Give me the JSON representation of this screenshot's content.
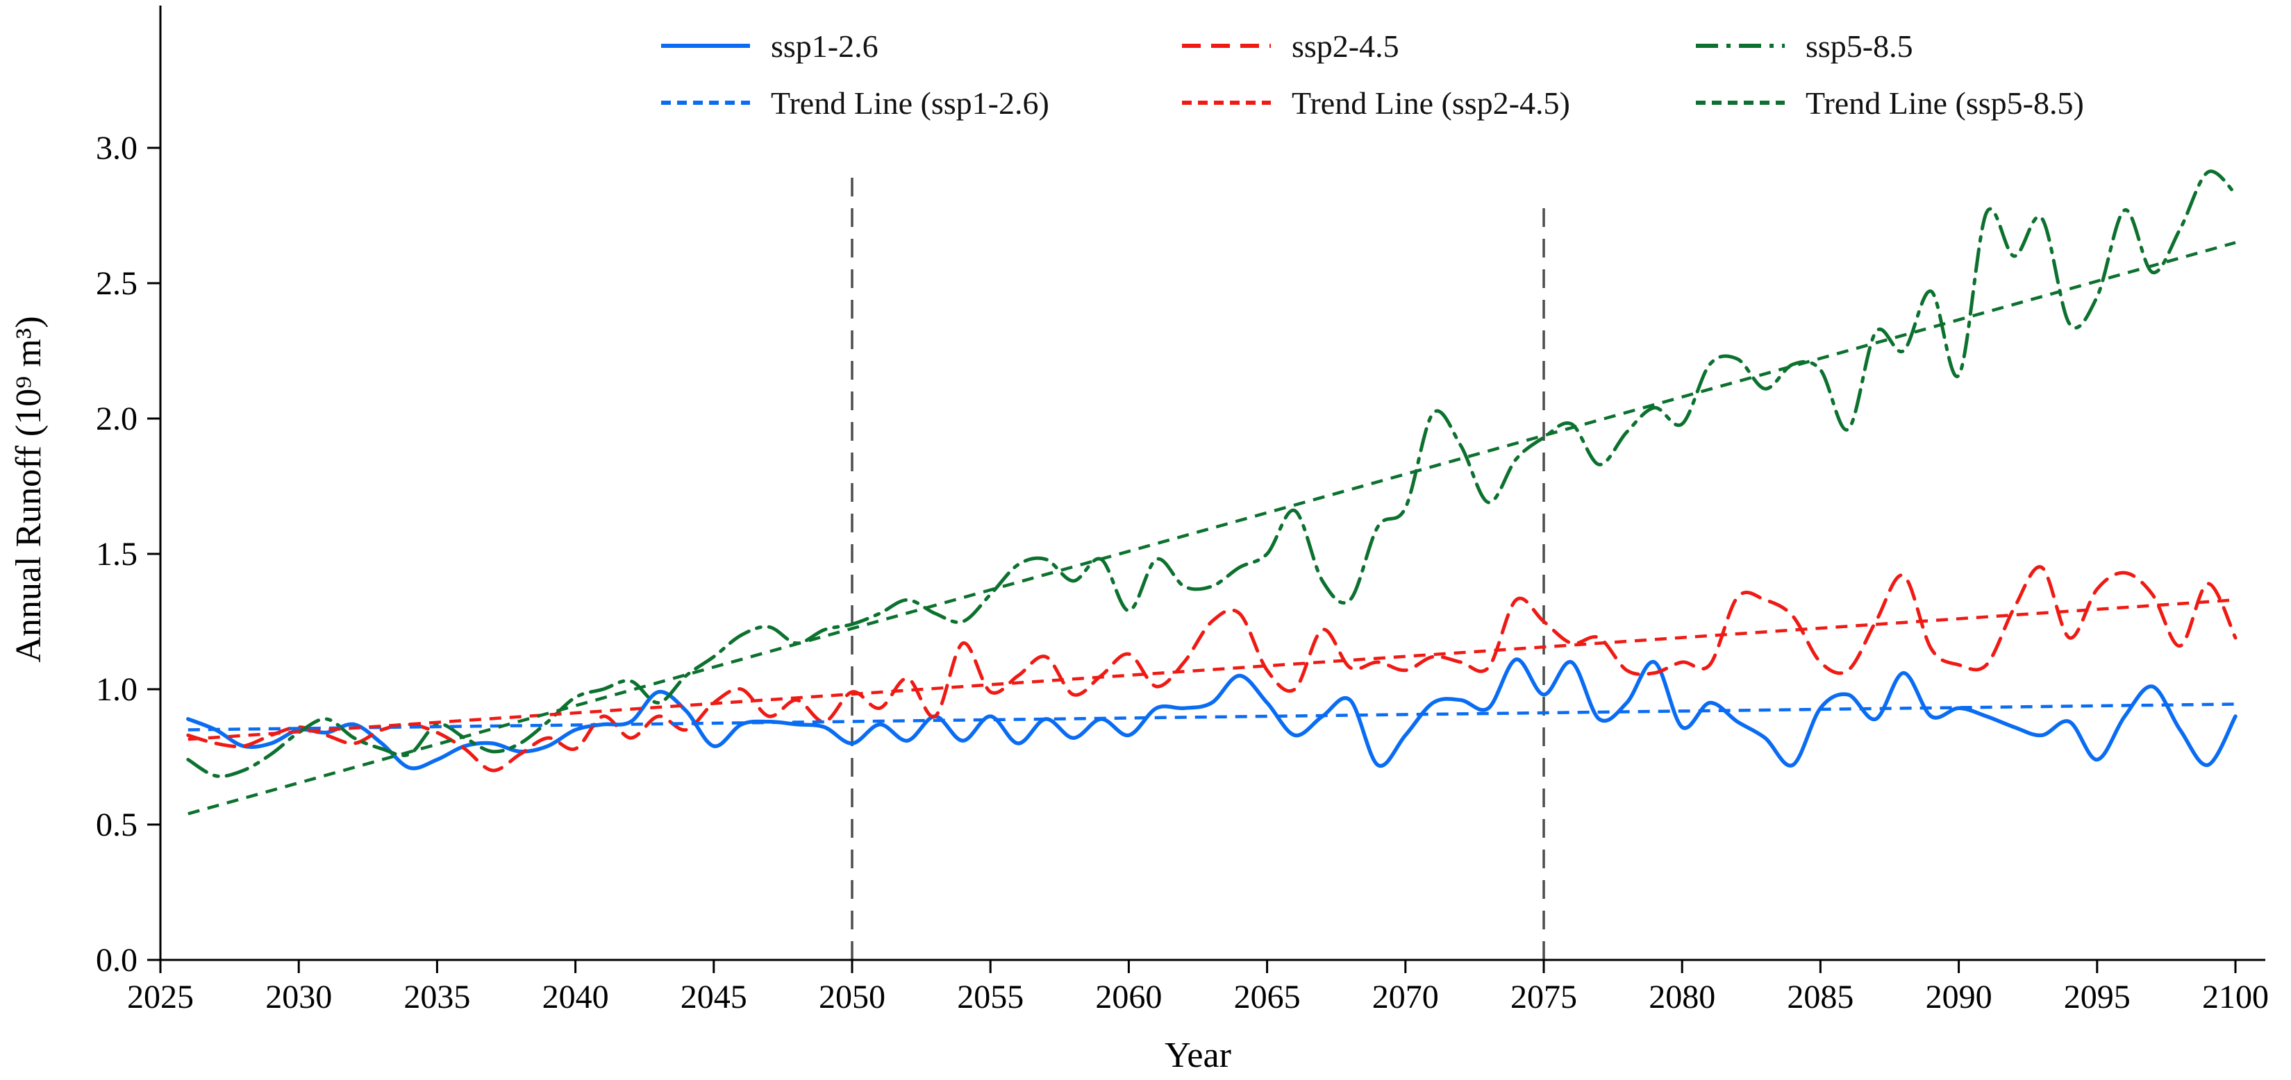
{
  "figure": {
    "background": "#ffffff",
    "axis_color": "#000000",
    "vline_color": "#4d4d4d"
  },
  "chart_data": {
    "type": "line",
    "title": "",
    "xlabel": "Year",
    "ylabel": "Annual Runoff (10⁹ m³)",
    "xlim": [
      2025,
      2100
    ],
    "ylim": [
      0.0,
      3.45
    ],
    "grid": false,
    "legend_position": "top-center",
    "xticks": [
      2025,
      2030,
      2035,
      2040,
      2045,
      2050,
      2055,
      2060,
      2065,
      2070,
      2075,
      2080,
      2085,
      2090,
      2095,
      2100
    ],
    "yticks": [
      0.0,
      0.5,
      1.0,
      1.5,
      2.0,
      2.5,
      3.0
    ],
    "vlines": [
      {
        "x": 2050,
        "ymin": 0.0,
        "ymax": 2.92,
        "style": "dashed"
      },
      {
        "x": 2075,
        "ymin": 0.0,
        "ymax": 2.78,
        "style": "dashed"
      }
    ],
    "x": [
      2026,
      2027,
      2028,
      2029,
      2030,
      2031,
      2032,
      2033,
      2034,
      2035,
      2036,
      2037,
      2038,
      2039,
      2040,
      2041,
      2042,
      2043,
      2044,
      2045,
      2046,
      2047,
      2048,
      2049,
      2050,
      2051,
      2052,
      2053,
      2054,
      2055,
      2056,
      2057,
      2058,
      2059,
      2060,
      2061,
      2062,
      2063,
      2064,
      2065,
      2066,
      2067,
      2068,
      2069,
      2070,
      2071,
      2072,
      2073,
      2074,
      2075,
      2076,
      2077,
      2078,
      2079,
      2080,
      2081,
      2082,
      2083,
      2084,
      2085,
      2086,
      2087,
      2088,
      2089,
      2090,
      2091,
      2092,
      2093,
      2094,
      2095,
      2096,
      2097,
      2098,
      2099,
      2100
    ],
    "series": [
      {
        "name": "ssp1-2.6",
        "color": "#0a6cf2",
        "style": "solid",
        "width": 5.5,
        "values": [
          0.89,
          0.85,
          0.79,
          0.8,
          0.85,
          0.84,
          0.87,
          0.8,
          0.71,
          0.74,
          0.79,
          0.8,
          0.77,
          0.79,
          0.85,
          0.87,
          0.88,
          0.99,
          0.92,
          0.79,
          0.87,
          0.88,
          0.87,
          0.86,
          0.8,
          0.87,
          0.81,
          0.9,
          0.81,
          0.9,
          0.8,
          0.89,
          0.82,
          0.89,
          0.83,
          0.93,
          0.93,
          0.95,
          1.05,
          0.95,
          0.83,
          0.9,
          0.96,
          0.72,
          0.83,
          0.95,
          0.96,
          0.93,
          1.11,
          0.98,
          1.1,
          0.89,
          0.95,
          1.1,
          0.86,
          0.95,
          0.88,
          0.82,
          0.72,
          0.93,
          0.98,
          0.89,
          1.06,
          0.9,
          0.93,
          0.9,
          0.86,
          0.83,
          0.88,
          0.74,
          0.9,
          1.01,
          0.85,
          0.72,
          0.9
        ]
      },
      {
        "name": "ssp2-4.5",
        "color": "#ef1a14",
        "style": "dashed",
        "width": 5,
        "values": [
          0.83,
          0.8,
          0.79,
          0.83,
          0.86,
          0.83,
          0.8,
          0.85,
          0.87,
          0.84,
          0.78,
          0.7,
          0.76,
          0.82,
          0.78,
          0.9,
          0.82,
          0.9,
          0.85,
          0.95,
          1.0,
          0.9,
          0.96,
          0.88,
          0.99,
          0.93,
          1.04,
          0.9,
          1.17,
          0.99,
          1.05,
          1.12,
          0.98,
          1.05,
          1.13,
          1.01,
          1.1,
          1.25,
          1.28,
          1.07,
          1.0,
          1.22,
          1.08,
          1.1,
          1.07,
          1.12,
          1.1,
          1.08,
          1.33,
          1.25,
          1.17,
          1.19,
          1.07,
          1.06,
          1.1,
          1.09,
          1.34,
          1.33,
          1.27,
          1.1,
          1.07,
          1.25,
          1.42,
          1.15,
          1.09,
          1.09,
          1.3,
          1.45,
          1.19,
          1.37,
          1.43,
          1.35,
          1.16,
          1.39,
          1.19
        ]
      },
      {
        "name": "ssp5-8.5",
        "color": "#0c712e",
        "style": "dashdot",
        "width": 5,
        "values": [
          0.74,
          0.68,
          0.7,
          0.76,
          0.84,
          0.89,
          0.82,
          0.78,
          0.76,
          0.87,
          0.82,
          0.77,
          0.8,
          0.88,
          0.97,
          1.0,
          1.03,
          0.95,
          1.05,
          1.12,
          1.2,
          1.23,
          1.17,
          1.22,
          1.24,
          1.28,
          1.33,
          1.28,
          1.25,
          1.35,
          1.46,
          1.48,
          1.4,
          1.48,
          1.29,
          1.48,
          1.38,
          1.38,
          1.45,
          1.5,
          1.66,
          1.4,
          1.33,
          1.6,
          1.67,
          2.02,
          1.9,
          1.69,
          1.85,
          1.93,
          1.98,
          1.83,
          1.95,
          2.04,
          1.98,
          2.2,
          2.22,
          2.11,
          2.2,
          2.18,
          1.96,
          2.32,
          2.25,
          2.47,
          2.16,
          2.76,
          2.6,
          2.74,
          2.35,
          2.45,
          2.77,
          2.54,
          2.7,
          2.91,
          2.83
        ]
      },
      {
        "name": "Trend Line (ssp1-2.6)",
        "color": "#0a6cf2",
        "style": "trend-dashed",
        "width": 4.5,
        "trend": {
          "x": [
            2026,
            2100
          ],
          "y": [
            0.85,
            0.945
          ]
        }
      },
      {
        "name": "Trend Line (ssp2-4.5)",
        "color": "#ef1a14",
        "style": "trend-dashed",
        "width": 4.5,
        "trend": {
          "x": [
            2026,
            2100
          ],
          "y": [
            0.815,
            1.33
          ]
        }
      },
      {
        "name": "Trend Line (ssp5-8.5)",
        "color": "#0c712e",
        "style": "trend-dashed",
        "width": 4.5,
        "trend": {
          "x": [
            2026,
            2100
          ],
          "y": [
            0.54,
            2.65
          ]
        }
      }
    ]
  },
  "legend": {
    "entries": [
      {
        "label": "ssp1-2.6"
      },
      {
        "label": "ssp2-4.5"
      },
      {
        "label": "ssp5-8.5"
      },
      {
        "label": "Trend Line (ssp1-2.6)"
      },
      {
        "label": "Trend Line (ssp2-4.5)"
      },
      {
        "label": "Trend Line (ssp5-8.5)"
      }
    ]
  }
}
